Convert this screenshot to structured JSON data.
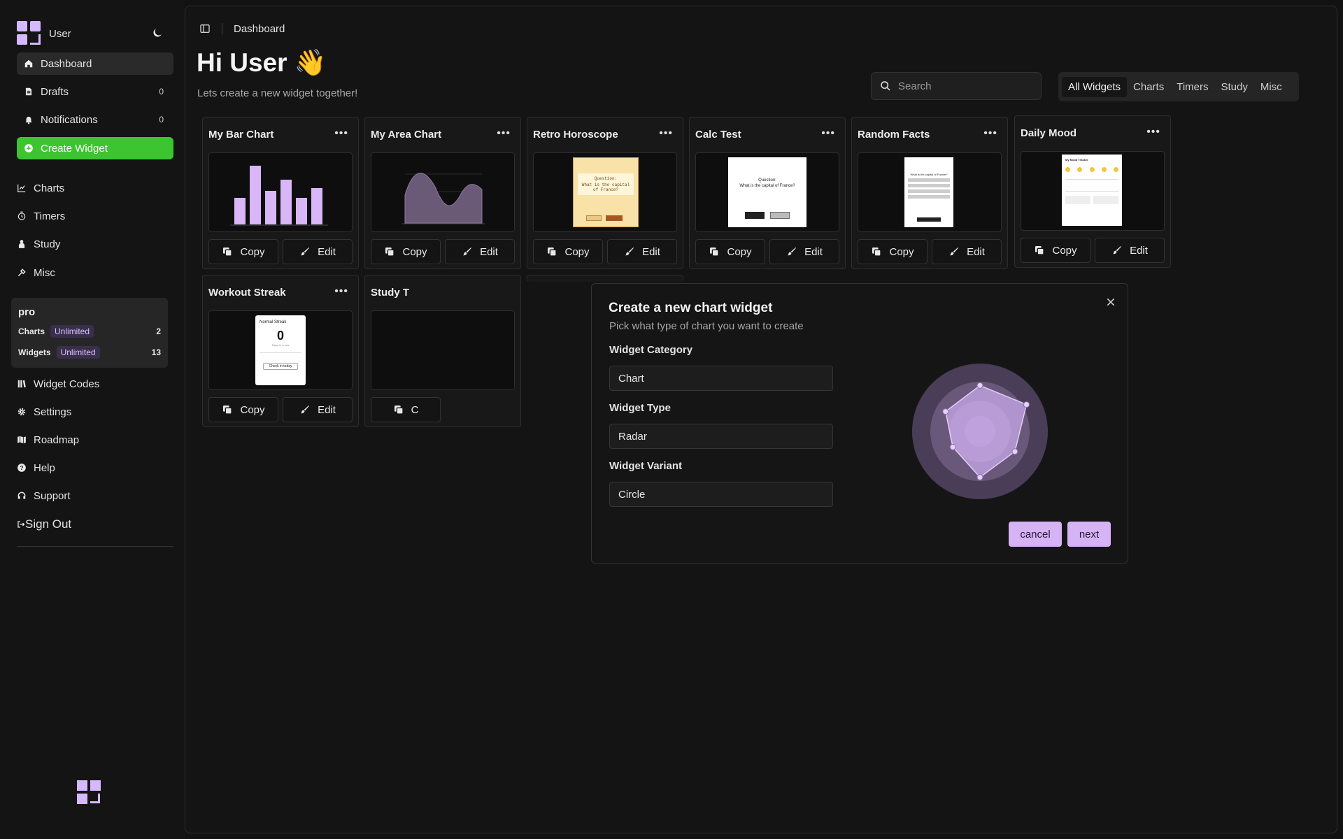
{
  "sidebar": {
    "user": "User",
    "items": [
      {
        "label": "Dashboard",
        "count": ""
      },
      {
        "label": "Drafts",
        "count": "0"
      },
      {
        "label": "Notifications",
        "count": "0"
      }
    ],
    "create_label": "Create Widget",
    "sections": [
      "Charts",
      "Timers",
      "Study",
      "Misc"
    ],
    "plan": {
      "title": "pro",
      "rows": [
        {
          "label": "Charts",
          "tag": "Unlimited",
          "value": "2"
        },
        {
          "label": "Widgets",
          "tag": "Unlimited",
          "value": "13"
        }
      ]
    },
    "links": [
      "Widget Codes",
      "Settings",
      "Roadmap",
      "Help",
      "Support",
      "Sign Out"
    ]
  },
  "header": {
    "breadcrumb": "Dashboard",
    "greeting": "Hi User 👋",
    "subtitle": "Lets create a new widget together!",
    "search_placeholder": "Search",
    "filters": [
      "All Widgets",
      "Charts",
      "Timers",
      "Study",
      "Misc"
    ]
  },
  "cards": [
    {
      "title": "My Bar Chart",
      "copy": "Copy",
      "edit": "Edit"
    },
    {
      "title": "My Area Chart",
      "copy": "Copy",
      "edit": "Edit"
    },
    {
      "title": "Retro Horoscope",
      "copy": "Copy",
      "edit": "Edit"
    },
    {
      "title": "Calc Test",
      "copy": "Copy",
      "edit": "Edit"
    },
    {
      "title": "Random Facts",
      "copy": "Copy",
      "edit": "Edit"
    },
    {
      "title": "Daily Mood",
      "copy": "Copy",
      "edit": "Edit"
    },
    {
      "title": "Workout Streak",
      "copy": "Copy",
      "edit": "Edit"
    },
    {
      "title": "Study T",
      "copy": "C",
      "edit": ""
    }
  ],
  "thumbs": {
    "horoscope_q": "Question:",
    "horoscope_text": "What is the capital of France?",
    "calc_q": "Question:",
    "calc_text": "What is the capital of France?",
    "facts_q": "What is the capital of France?",
    "mood_title": "My Mood Tracker",
    "streak_title": "Normal Streak",
    "streak_value": "0",
    "streak_sub": "Days in a row",
    "streak_btn": "Check in today"
  },
  "modal": {
    "title": "Create a new chart widget",
    "subtitle": "Pick what type of chart you want to create",
    "fields": [
      {
        "label": "Widget Category",
        "value": "Chart"
      },
      {
        "label": "Widget Type",
        "value": "Radar"
      },
      {
        "label": "Widget Variant",
        "value": "Circle"
      }
    ],
    "cancel_label": "cancel",
    "next_label": "next",
    "preview_radar_values": [
      0.82,
      0.96,
      0.72,
      0.82,
      0.56,
      0.71
    ]
  },
  "colors": {
    "accent": "#d5b3f5",
    "create_button": "#3cc531",
    "background": "#121212"
  }
}
